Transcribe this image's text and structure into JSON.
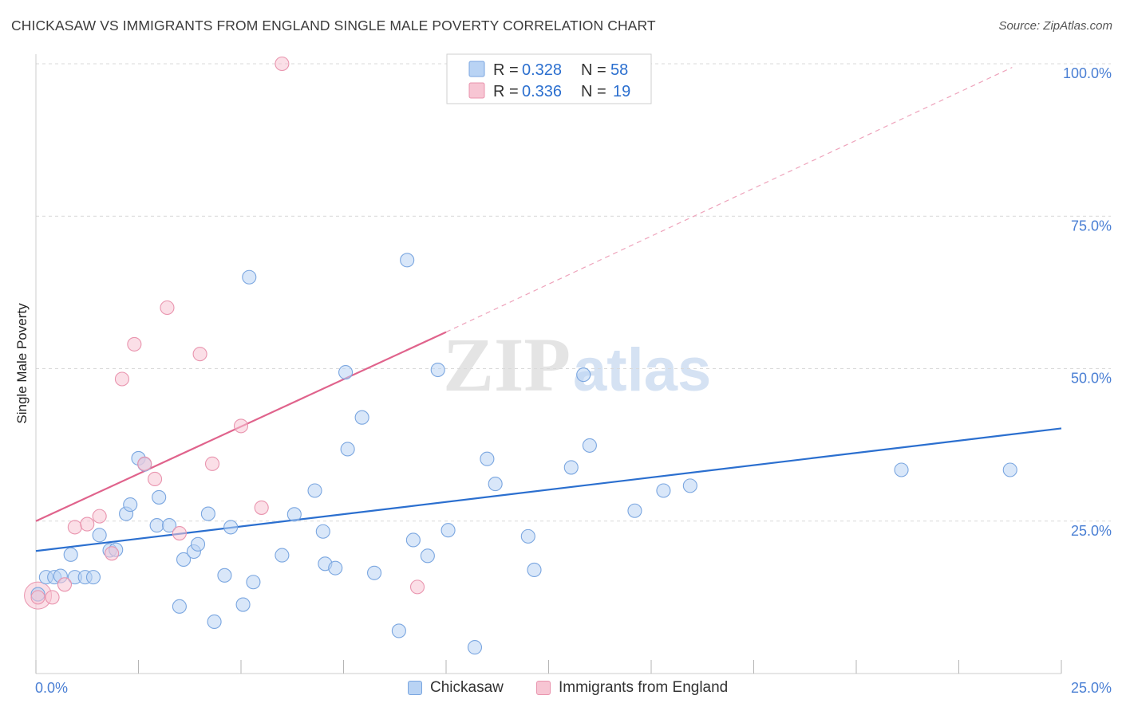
{
  "title": "CHICKASAW VS IMMIGRANTS FROM ENGLAND SINGLE MALE POVERTY CORRELATION CHART",
  "source": "Source: ZipAtlas.com",
  "colors": {
    "chickasaw_fill": "#b9d3f4",
    "chickasaw_stroke": "#7aa6e0",
    "chickasaw_line": "#2b6fcf",
    "england_fill": "#f7c5d3",
    "england_stroke": "#e994ae",
    "england_line": "#e0638c",
    "tick_text": "#4a7fd4",
    "grid": "#d9d9d9"
  },
  "legend": {
    "r_label": "R =",
    "n_label": "N =",
    "rows": [
      {
        "r": "0.328",
        "n": "58"
      },
      {
        "r": "0.336",
        "n": "19"
      }
    ]
  },
  "watermark": {
    "zip": "ZIP",
    "atlas": "atlas"
  },
  "chart_data": {
    "type": "scatter",
    "title": "CHICKASAW VS IMMIGRANTS FROM ENGLAND SINGLE MALE POVERTY CORRELATION CHART",
    "xlabel": "",
    "ylabel": "Single Male Poverty",
    "xlim": [
      0,
      25
    ],
    "ylim": [
      0,
      100
    ],
    "x_tick_labels": [
      "0.0%",
      "25.0%"
    ],
    "y_tick_labels": [
      "25.0%",
      "50.0%",
      "75.0%",
      "100.0%"
    ],
    "y_ticks": [
      25,
      50,
      75,
      100
    ],
    "grid": true,
    "legend_position": "top-center",
    "series": [
      {
        "name": "Chickasaw",
        "r": 0.328,
        "n": 58,
        "trend": {
          "x": [
            0,
            25
          ],
          "y": [
            20.1,
            40.2
          ],
          "style": "solid"
        },
        "points": [
          {
            "x": 0.05,
            "y": 13.0
          },
          {
            "x": 0.25,
            "y": 15.8
          },
          {
            "x": 0.45,
            "y": 15.8
          },
          {
            "x": 0.6,
            "y": 16.0
          },
          {
            "x": 0.85,
            "y": 19.5
          },
          {
            "x": 0.95,
            "y": 15.8
          },
          {
            "x": 1.2,
            "y": 15.8
          },
          {
            "x": 1.4,
            "y": 15.8
          },
          {
            "x": 1.55,
            "y": 22.7
          },
          {
            "x": 1.8,
            "y": 20.2
          },
          {
            "x": 1.95,
            "y": 20.3
          },
          {
            "x": 2.2,
            "y": 26.2
          },
          {
            "x": 2.3,
            "y": 27.7
          },
          {
            "x": 2.5,
            "y": 35.3
          },
          {
            "x": 2.65,
            "y": 34.3
          },
          {
            "x": 2.95,
            "y": 24.3
          },
          {
            "x": 3.0,
            "y": 28.9
          },
          {
            "x": 3.25,
            "y": 24.3
          },
          {
            "x": 3.5,
            "y": 11.0
          },
          {
            "x": 3.6,
            "y": 18.7
          },
          {
            "x": 3.85,
            "y": 20.0
          },
          {
            "x": 3.95,
            "y": 21.2
          },
          {
            "x": 4.2,
            "y": 26.2
          },
          {
            "x": 4.35,
            "y": 8.5
          },
          {
            "x": 4.6,
            "y": 16.1
          },
          {
            "x": 4.75,
            "y": 24.0
          },
          {
            "x": 5.05,
            "y": 11.3
          },
          {
            "x": 5.2,
            "y": 65.0
          },
          {
            "x": 5.3,
            "y": 15.0
          },
          {
            "x": 6.0,
            "y": 19.4
          },
          {
            "x": 6.3,
            "y": 26.1
          },
          {
            "x": 6.8,
            "y": 30.0
          },
          {
            "x": 7.0,
            "y": 23.3
          },
          {
            "x": 7.05,
            "y": 18.0
          },
          {
            "x": 7.3,
            "y": 17.3
          },
          {
            "x": 7.55,
            "y": 49.4
          },
          {
            "x": 7.6,
            "y": 36.8
          },
          {
            "x": 7.95,
            "y": 42.0
          },
          {
            "x": 8.25,
            "y": 16.5
          },
          {
            "x": 8.85,
            "y": 7.0
          },
          {
            "x": 9.05,
            "y": 67.8
          },
          {
            "x": 9.2,
            "y": 21.9
          },
          {
            "x": 9.55,
            "y": 19.3
          },
          {
            "x": 9.8,
            "y": 49.8
          },
          {
            "x": 10.05,
            "y": 23.5
          },
          {
            "x": 10.7,
            "y": 4.3
          },
          {
            "x": 11.0,
            "y": 35.2
          },
          {
            "x": 11.2,
            "y": 31.1
          },
          {
            "x": 12.0,
            "y": 22.5
          },
          {
            "x": 12.15,
            "y": 17.0
          },
          {
            "x": 13.05,
            "y": 33.8
          },
          {
            "x": 13.35,
            "y": 49.0
          },
          {
            "x": 13.5,
            "y": 37.4
          },
          {
            "x": 14.6,
            "y": 26.7
          },
          {
            "x": 15.3,
            "y": 30.0
          },
          {
            "x": 15.95,
            "y": 30.8
          },
          {
            "x": 21.1,
            "y": 33.4
          },
          {
            "x": 23.75,
            "y": 33.4
          }
        ]
      },
      {
        "name": "Immigrants from England",
        "r": 0.336,
        "n": 19,
        "trend": {
          "x": [
            0,
            10.0
          ],
          "y": [
            25.0,
            56.0
          ],
          "style": "solid",
          "extended": {
            "x": [
              10.0,
              23.8
            ],
            "y": [
              56.0,
              99.4
            ],
            "style": "dashed"
          }
        },
        "points": [
          {
            "x": 0.05,
            "y": 12.5
          },
          {
            "x": 0.4,
            "y": 12.5
          },
          {
            "x": 0.7,
            "y": 14.6
          },
          {
            "x": 0.95,
            "y": 24.0
          },
          {
            "x": 1.25,
            "y": 24.5
          },
          {
            "x": 1.55,
            "y": 25.8
          },
          {
            "x": 1.85,
            "y": 19.7
          },
          {
            "x": 2.1,
            "y": 48.3
          },
          {
            "x": 2.4,
            "y": 54.0
          },
          {
            "x": 2.65,
            "y": 34.4
          },
          {
            "x": 2.9,
            "y": 31.9
          },
          {
            "x": 3.2,
            "y": 60.0
          },
          {
            "x": 3.5,
            "y": 23.0
          },
          {
            "x": 4.0,
            "y": 52.4
          },
          {
            "x": 4.3,
            "y": 34.4
          },
          {
            "x": 5.0,
            "y": 40.6
          },
          {
            "x": 5.5,
            "y": 27.2
          },
          {
            "x": 6.0,
            "y": 100.0
          },
          {
            "x": 9.3,
            "y": 14.2
          }
        ]
      }
    ]
  },
  "bottom_legend": [
    {
      "label": "Chickasaw"
    },
    {
      "label": "Immigrants from England"
    }
  ]
}
